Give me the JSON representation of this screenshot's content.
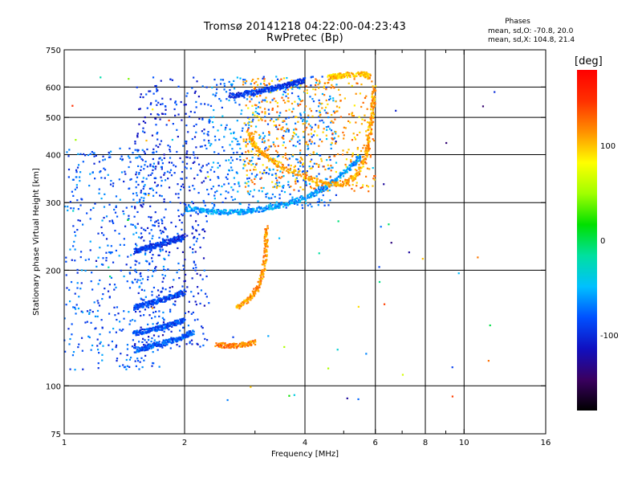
{
  "title": {
    "line1": "Tromsø 20141218 04:22:00-04:23:43",
    "line2": "RwPretec (Bp)"
  },
  "phases_box": {
    "heading": "Phases",
    "line_o": "mean, sd,O: -70.8, 20.0",
    "line_x": "mean, sd,X: 104.8, 21.4"
  },
  "colorbar": {
    "unit": "[deg]",
    "range": [
      -180,
      180
    ],
    "ticks": [
      {
        "value": 100,
        "label": "100"
      },
      {
        "value": 0,
        "label": "0"
      },
      {
        "value": -100,
        "label": "-100"
      }
    ],
    "colors": [
      "#000000",
      "#3a0060",
      "#1010c0",
      "#0050ff",
      "#00c0ff",
      "#00e0a0",
      "#00e000",
      "#a0ff00",
      "#ffff00",
      "#ff9000",
      "#ff3000",
      "#ff0000"
    ]
  },
  "chart_data": {
    "type": "scatter",
    "xlabel": "Frequency [MHz]",
    "ylabel": "Stationary phase Virtual Height [km]",
    "x_scale": "log",
    "y_scale": "log",
    "xlim": [
      1,
      16
    ],
    "ylim": [
      75,
      750
    ],
    "x_ticks": [
      {
        "value": 1,
        "label": "1"
      },
      {
        "value": 2,
        "label": "2"
      },
      {
        "value": 4,
        "label": "4"
      },
      {
        "value": 6,
        "label": "6"
      },
      {
        "value": 8,
        "label": "8"
      },
      {
        "value": 10,
        "label": "10"
      },
      {
        "value": 16,
        "label": "16"
      }
    ],
    "x_minor_ticks": [
      3,
      5,
      7,
      9
    ],
    "x_grid": [
      2,
      4,
      6,
      8,
      10
    ],
    "y_ticks": [
      {
        "value": 75,
        "label": "75"
      },
      {
        "value": 100,
        "label": "100"
      },
      {
        "value": 200,
        "label": "200"
      },
      {
        "value": 300,
        "label": "300"
      },
      {
        "value": 400,
        "label": "400"
      },
      {
        "value": 500,
        "label": "500"
      },
      {
        "value": 600,
        "label": "600"
      },
      {
        "value": 750,
        "label": "750"
      }
    ],
    "y_grid": [
      100,
      200,
      300,
      400,
      500,
      600
    ],
    "grid": true,
    "series": [
      {
        "trace": "o-low-lower",
        "phase": -80,
        "points": [
          [
            1.5,
            124
          ],
          [
            1.6,
            126
          ],
          [
            1.7,
            128
          ],
          [
            1.8,
            130
          ],
          [
            1.9,
            132
          ],
          [
            2.0,
            135
          ],
          [
            2.1,
            138
          ]
        ]
      },
      {
        "trace": "o-low-mid",
        "phase": -85,
        "points": [
          [
            1.5,
            137
          ],
          [
            1.6,
            139
          ],
          [
            1.7,
            141
          ],
          [
            1.8,
            143
          ],
          [
            1.9,
            146
          ],
          [
            2.0,
            148
          ]
        ]
      },
      {
        "trace": "o-low-upper",
        "phase": -90,
        "points": [
          [
            1.5,
            160
          ],
          [
            1.6,
            163
          ],
          [
            1.7,
            166
          ],
          [
            1.8,
            169
          ],
          [
            1.9,
            172
          ],
          [
            2.0,
            176
          ]
        ]
      },
      {
        "trace": "o-mid",
        "phase": -95,
        "points": [
          [
            1.5,
            225
          ],
          [
            1.6,
            228
          ],
          [
            1.7,
            232
          ],
          [
            1.8,
            236
          ],
          [
            1.9,
            240
          ],
          [
            2.0,
            245
          ]
        ]
      },
      {
        "trace": "o-f-layer",
        "phase": -60,
        "points": [
          [
            2.0,
            290
          ],
          [
            2.2,
            286
          ],
          [
            2.4,
            284
          ],
          [
            2.6,
            283
          ],
          [
            2.8,
            284
          ],
          [
            3.0,
            287
          ],
          [
            3.3,
            292
          ],
          [
            3.6,
            298
          ],
          [
            4.0,
            308
          ],
          [
            4.4,
            325
          ],
          [
            4.8,
            345
          ],
          [
            5.2,
            370
          ],
          [
            5.5,
            395
          ]
        ]
      },
      {
        "trace": "o-upper",
        "phase": -95,
        "points": [
          [
            2.6,
            570
          ],
          [
            2.8,
            575
          ],
          [
            3.0,
            582
          ],
          [
            3.2,
            590
          ],
          [
            3.4,
            598
          ],
          [
            3.6,
            606
          ],
          [
            3.8,
            616
          ],
          [
            4.0,
            626
          ]
        ]
      },
      {
        "trace": "x-lower",
        "phase": 120,
        "points": [
          [
            2.4,
            128
          ],
          [
            2.6,
            127
          ],
          [
            2.8,
            128
          ],
          [
            3.0,
            130
          ]
        ]
      },
      {
        "trace": "x-mid",
        "phase": 115,
        "points": [
          [
            2.7,
            160
          ],
          [
            2.9,
            168
          ],
          [
            3.05,
            180
          ],
          [
            3.15,
            200
          ],
          [
            3.2,
            230
          ],
          [
            3.2,
            260
          ]
        ]
      },
      {
        "trace": "x-f-layer",
        "phase": 110,
        "points": [
          [
            2.9,
            450
          ],
          [
            3.0,
            420
          ],
          [
            3.2,
            395
          ],
          [
            3.5,
            372
          ],
          [
            4.0,
            350
          ],
          [
            4.5,
            335
          ],
          [
            5.0,
            335
          ],
          [
            5.4,
            355
          ],
          [
            5.7,
            400
          ],
          [
            5.8,
            450
          ],
          [
            5.9,
            520
          ],
          [
            5.95,
            600
          ]
        ]
      },
      {
        "trace": "x-top",
        "phase": 100,
        "points": [
          [
            4.6,
            635
          ],
          [
            4.8,
            640
          ],
          [
            5.0,
            645
          ],
          [
            5.6,
            650
          ],
          [
            5.8,
            640
          ]
        ]
      }
    ],
    "cloud_regions": [
      {
        "name": "o-ray-column",
        "x": [
          1.5,
          2.3
        ],
        "y": [
          125,
          640
        ],
        "phase": -95
      },
      {
        "name": "o-ray-spread",
        "x": [
          1.0,
          1.8
        ],
        "y": [
          110,
          420
        ],
        "phase": -80
      },
      {
        "name": "o-ray-upper",
        "x": [
          2.3,
          4.8
        ],
        "y": [
          290,
          640
        ],
        "phase": -70
      },
      {
        "name": "x-ray-upper",
        "x": [
          2.8,
          6.0
        ],
        "y": [
          320,
          640
        ],
        "phase": 110
      }
    ]
  }
}
